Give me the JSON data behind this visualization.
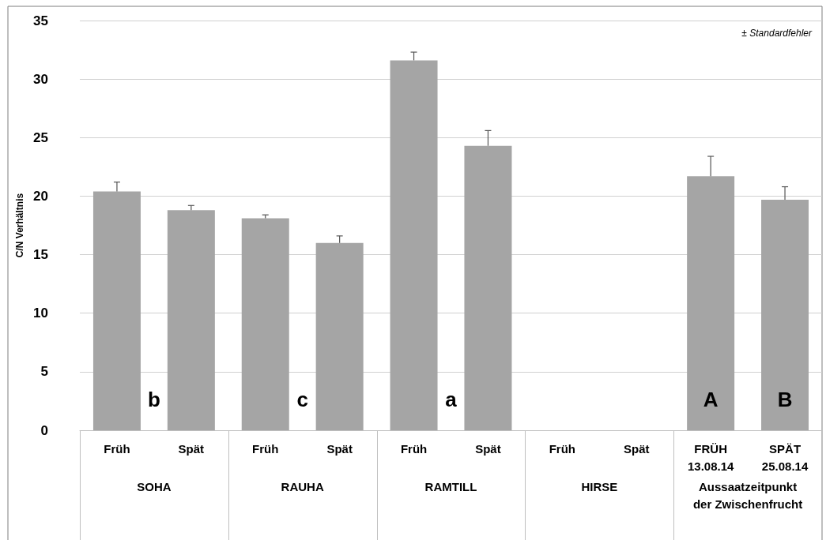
{
  "chart_data": {
    "type": "bar",
    "ylabel": "C/N Verhältnis",
    "categories": [
      "Früh",
      "Spät",
      "Früh",
      "Spät",
      "Früh",
      "Spät",
      "Früh",
      "Spät",
      "FRÜH\n13.08.14",
      "SPÄT\n25.08.14"
    ],
    "values": [
      20.4,
      18.8,
      18.1,
      16.0,
      31.6,
      24.3,
      null,
      null,
      21.7,
      19.7
    ],
    "errors": [
      0.8,
      0.4,
      0.3,
      0.6,
      0.7,
      1.3,
      null,
      null,
      1.7,
      1.1
    ],
    "color": "#a5a5a5",
    "ylim": [
      0,
      35
    ],
    "yticks": [
      0,
      5,
      10,
      15,
      20,
      25,
      30,
      35
    ],
    "grid": "y",
    "annotations": [
      "± Standardfehler",
      "b",
      "c",
      "a",
      "A",
      "B",
      "SOHA",
      "RAUHA",
      "RAMTILL",
      "HIRSE",
      "Aussaatzeitpunkt\nder Zwischenfrucht"
    ]
  }
}
